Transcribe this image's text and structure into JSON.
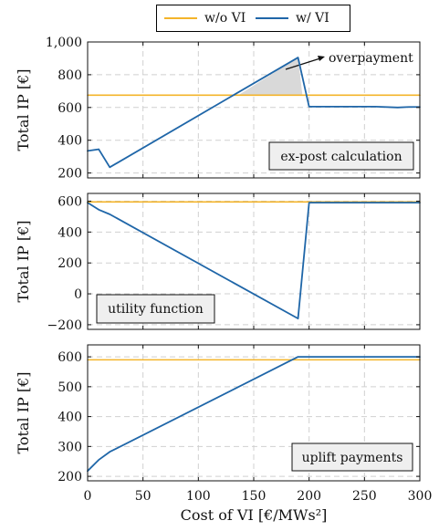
{
  "legend": {
    "items": [
      {
        "label": "w/o VI",
        "color": "#F4B42A"
      },
      {
        "label": "w/ VI",
        "color": "#1F66A8"
      }
    ]
  },
  "x_axis_title": "Cost of VI [€/MWs²]",
  "chart_data": [
    {
      "type": "line",
      "title": "",
      "annotation": "ex-post calculation",
      "callout": "overpayment",
      "ylabel": "Total IP [€]",
      "xlim": [
        0,
        300
      ],
      "ylim": [
        170,
        1000
      ],
      "yticks": [
        200,
        400,
        600,
        800,
        1000
      ],
      "ytick_labels": [
        "200",
        "400",
        "600",
        "800",
        "1,000"
      ],
      "xticks": [
        0,
        50,
        100,
        150,
        200,
        250,
        300
      ],
      "grid": true,
      "legend_position": "top-center",
      "overpayment_region": {
        "x_start": 136,
        "x_end": 190,
        "x_end_point": 194,
        "y_base": 675
      },
      "series": [
        {
          "name": "w/o VI",
          "x": [
            0,
            300
          ],
          "y": [
            675,
            675
          ]
        },
        {
          "name": "w/ VI",
          "x": [
            0,
            10,
            20,
            190,
            200,
            210,
            230,
            260,
            280,
            290,
            300
          ],
          "y": [
            335,
            345,
            235,
            905,
            605,
            605,
            605,
            605,
            600,
            603,
            603
          ]
        }
      ]
    },
    {
      "type": "line",
      "title": "",
      "annotation": "utility function",
      "ylabel": "Total IP [€]",
      "xlim": [
        0,
        300
      ],
      "ylim": [
        -230,
        650
      ],
      "yticks": [
        -200,
        0,
        200,
        400,
        600
      ],
      "ytick_labels": [
        "−200",
        "0",
        "200",
        "400",
        "600"
      ],
      "xticks": [
        0,
        50,
        100,
        150,
        200,
        250,
        300
      ],
      "grid": true,
      "series": [
        {
          "name": "w/o VI",
          "x": [
            0,
            300
          ],
          "y": [
            595,
            595
          ]
        },
        {
          "name": "w/ VI",
          "x": [
            0,
            10,
            20,
            190,
            200,
            210,
            230,
            260,
            280,
            290,
            300
          ],
          "y": [
            590,
            545,
            515,
            -160,
            590,
            590,
            590,
            590,
            590,
            590,
            590
          ]
        }
      ]
    },
    {
      "type": "line",
      "title": "",
      "annotation": "uplift payments",
      "ylabel": "Total IP [€]",
      "xlim": [
        0,
        300
      ],
      "ylim": [
        185,
        640
      ],
      "yticks": [
        200,
        300,
        400,
        500,
        600
      ],
      "ytick_labels": [
        "200",
        "300",
        "400",
        "500",
        "600"
      ],
      "xticks": [
        0,
        50,
        100,
        150,
        200,
        250,
        300
      ],
      "xtick_labels": [
        "0",
        "50",
        "100",
        "150",
        "200",
        "250",
        "300"
      ],
      "grid": true,
      "series": [
        {
          "name": "w/o VI",
          "x": [
            0,
            300
          ],
          "y": [
            590,
            590
          ]
        },
        {
          "name": "w/ VI",
          "x": [
            0,
            10,
            20,
            190,
            200,
            300
          ],
          "y": [
            218,
            255,
            282,
            600,
            600,
            600
          ]
        }
      ]
    }
  ]
}
